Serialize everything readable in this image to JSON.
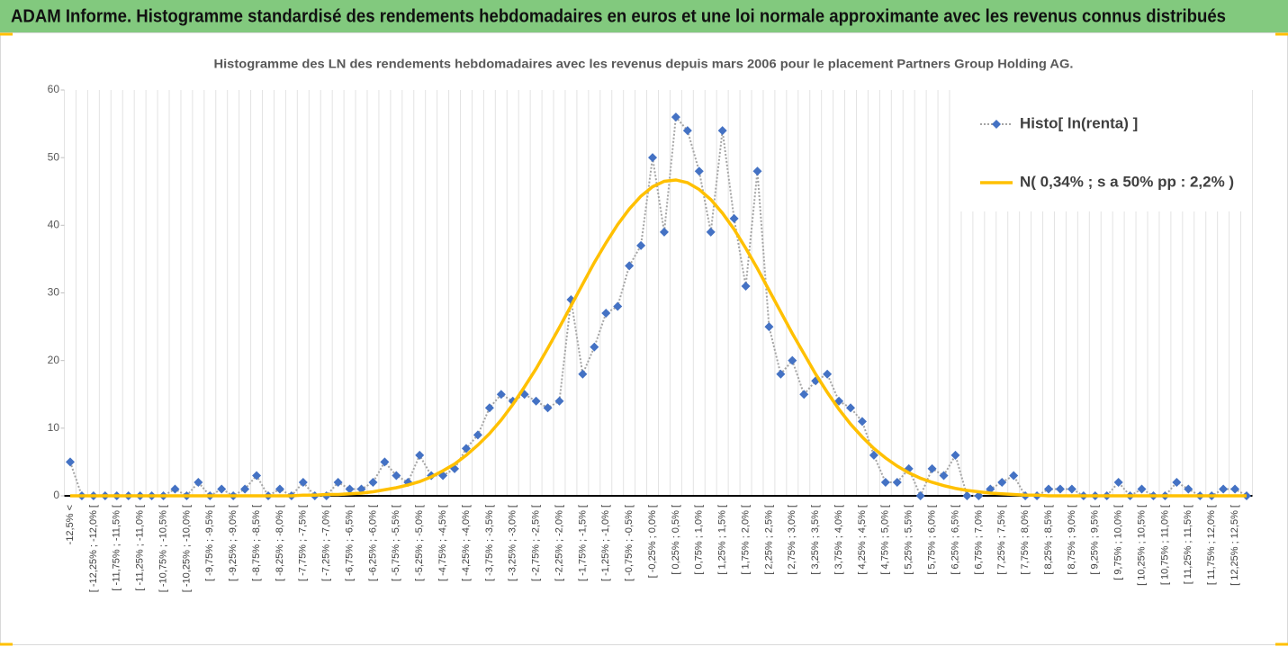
{
  "header": {
    "title": "ADAM Informe. Histogramme standardisé des rendements hebdomadaires en euros et une loi normale approximante avec les revenus connus distribués"
  },
  "chart_data": {
    "type": "line",
    "title": "Histogramme des LN des rendements hebdomadaires avec les revenus depuis mars 2006 pour le placement Partners Group Holding AG.",
    "categories": [
      "-12,5% <",
      null,
      "[ -12,25% ; -12,0% [",
      null,
      "[ -11,75% ; -11,5% [",
      null,
      "[ -11,25% ; -11,0% [",
      null,
      "[ -10,75% ; -10,5% [",
      null,
      "[ -10,25% ; -10,0% [",
      null,
      "[ -9,75% ; -9,5% [",
      null,
      "[ -9,25% ; -9,0% [",
      null,
      "[ -8,75% ; -8,5% [",
      null,
      "[ -8,25% ; -8,0% [",
      null,
      "[ -7,75% ; -7,5% [",
      null,
      "[ -7,25% ; -7,0% [",
      null,
      "[ -6,75% ; -6,5% [",
      null,
      "[ -6,25% ; -6,0% [",
      null,
      "[ -5,75% ; -5,5% [",
      null,
      "[ -5,25% ; -5,0% [",
      null,
      "[ -4,75% ; -4,5% [",
      null,
      "[ -4,25% ; -4,0% [",
      null,
      "[ -3,75% ; -3,5% [",
      null,
      "[ -3,25% ; -3,0% [",
      null,
      "[ -2,75% ; -2,5% [",
      null,
      "[ -2,25% ; -2,0% [",
      null,
      "[ -1,75% ; -1,5% [",
      null,
      "[ -1,25% ; -1,0% [",
      null,
      "[ -0,75% ; -0,5% [",
      null,
      "[ -0,25% ; 0,0% [",
      null,
      "[ 0,25% ; 0,5% [",
      null,
      "[ 0,75% ; 1,0% [",
      null,
      "[ 1,25% ; 1,5% [",
      null,
      "[ 1,75% ; 2,0% [",
      null,
      "[ 2,25% ; 2,5% [",
      null,
      "[ 2,75% ; 3,0% [",
      null,
      "[ 3,25% ; 3,5% [",
      null,
      "[ 3,75% ; 4,0% [",
      null,
      "[ 4,25% ; 4,5% [",
      null,
      "[ 4,75% ; 5,0% [",
      null,
      "[ 5,25% ; 5,5% [",
      null,
      "[ 5,75% ; 6,0% [",
      null,
      "[ 6,25% ; 6,5% [",
      null,
      "[ 6,75% ; 7,0% [",
      null,
      "[ 7,25% ; 7,5% [",
      null,
      "[ 7,75% ; 8,0% [",
      null,
      "[ 8,25% ; 8,5% [",
      null,
      "[ 8,75% ; 9,0% [",
      null,
      "[ 9,25% ; 9,5% [",
      null,
      "[ 9,75% ; 10,0% [",
      null,
      "[ 10,25% ; 10,5% [",
      null,
      "[ 10,75% ; 11,0% [",
      null,
      "[ 11,25% ; 11,5% [",
      null,
      "[ 11,75% ; 12,0% [",
      null,
      "[ 12,25% ; 12,5% [",
      null
    ],
    "series": [
      {
        "name": "Histo[ ln(renta) ]",
        "color": "#4472c4",
        "line_color": "#a5a5a5",
        "line_style": "dotted",
        "marker": "diamond",
        "values": [
          5,
          0,
          0,
          0,
          0,
          0,
          0,
          0,
          0,
          1,
          0,
          2,
          0,
          1,
          0,
          1,
          3,
          0,
          1,
          0,
          2,
          0,
          0,
          2,
          1,
          1,
          2,
          5,
          3,
          2,
          6,
          3,
          3,
          4,
          7,
          9,
          13,
          15,
          14,
          15,
          14,
          13,
          14,
          29,
          18,
          22,
          27,
          28,
          34,
          37,
          50,
          39,
          56,
          54,
          48,
          39,
          54,
          41,
          31,
          48,
          25,
          18,
          20,
          15,
          17,
          18,
          14,
          13,
          11,
          6,
          2,
          2,
          4,
          0,
          4,
          3,
          6,
          0,
          0,
          1,
          2,
          3,
          0,
          0,
          1,
          1,
          1,
          0,
          0,
          0,
          2,
          0,
          1,
          0,
          0,
          2,
          1,
          0,
          0,
          1,
          1,
          0
        ]
      },
      {
        "name": "N( 0,34% ; s a 50% pp : 2,2% )",
        "color": "#ffc000",
        "line_style": "solid",
        "marker": "none",
        "values": [
          0,
          0,
          0,
          0,
          0,
          0,
          0,
          0,
          0,
          0,
          0,
          0,
          0,
          0,
          0,
          0,
          0,
          0,
          0,
          0,
          0.1,
          0.1,
          0.2,
          0.2,
          0.3,
          0.4,
          0.6,
          0.9,
          1.2,
          1.6,
          2.1,
          2.8,
          3.7,
          4.7,
          6.0,
          7.5,
          9.2,
          11.2,
          13.5,
          16.1,
          18.8,
          21.8,
          24.9,
          28.1,
          31.3,
          34.5,
          37.4,
          40.1,
          42.4,
          44.3,
          45.7,
          46.5,
          46.7,
          46.3,
          45.3,
          43.8,
          41.8,
          39.4,
          36.6,
          33.6,
          30.4,
          27.2,
          24.0,
          21.0,
          18.0,
          15.3,
          12.8,
          10.6,
          8.7,
          7.0,
          5.6,
          4.4,
          3.4,
          2.6,
          2.0,
          1.5,
          1.1,
          0.8,
          0.6,
          0.4,
          0.3,
          0.2,
          0.1,
          0.1,
          0,
          0,
          0,
          0,
          0,
          0,
          0,
          0,
          0,
          0,
          0,
          0,
          0,
          0,
          0,
          0,
          0,
          0
        ]
      }
    ],
    "ylim": [
      0,
      60
    ],
    "yticks": [
      0,
      10,
      20,
      30,
      40,
      50,
      60
    ],
    "grid": "vertical",
    "legend": "upper right"
  }
}
